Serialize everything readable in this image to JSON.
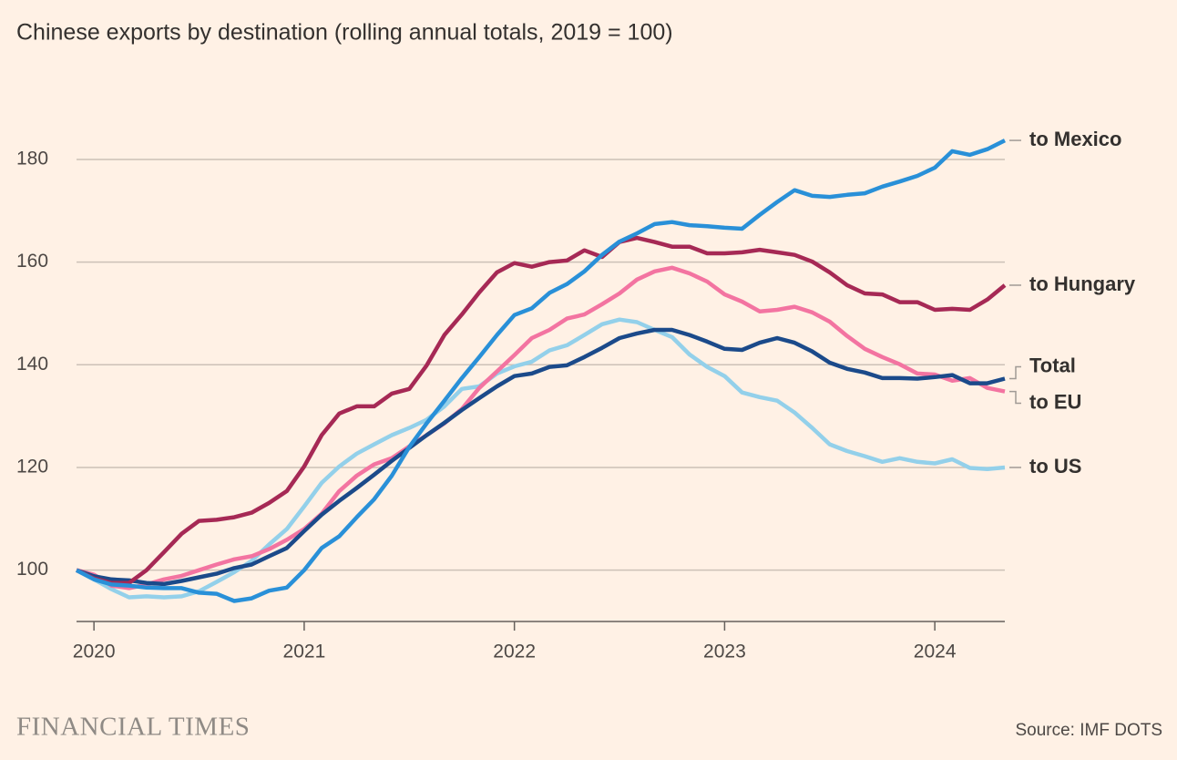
{
  "chart_data": {
    "type": "line",
    "title": "Chinese exports by destination (rolling annual totals, 2019 = 100)",
    "x": [
      2019.917,
      2020.0,
      2020.083,
      2020.167,
      2020.25,
      2020.333,
      2020.417,
      2020.5,
      2020.583,
      2020.667,
      2020.75,
      2020.833,
      2020.917,
      2021.0,
      2021.083,
      2021.167,
      2021.25,
      2021.333,
      2021.417,
      2021.5,
      2021.583,
      2021.667,
      2021.75,
      2021.833,
      2021.917,
      2022.0,
      2022.083,
      2022.167,
      2022.25,
      2022.333,
      2022.417,
      2022.5,
      2022.583,
      2022.667,
      2022.75,
      2022.833,
      2022.917,
      2023.0,
      2023.083,
      2023.167,
      2023.25,
      2023.333,
      2023.417,
      2023.5,
      2023.583,
      2023.667,
      2023.75,
      2023.833,
      2023.917,
      2024.0,
      2024.083,
      2024.167,
      2024.25,
      2024.333
    ],
    "series": [
      {
        "name": "to US",
        "color": "#93d0ea",
        "values": [
          100,
          98.2,
          96.3,
          94.7,
          94.9,
          94.7,
          94.9,
          95.9,
          97.7,
          99.6,
          101.8,
          105,
          108,
          112.4,
          117,
          120.2,
          122.7,
          124.5,
          126.3,
          127.7,
          129.3,
          131.9,
          135.3,
          135.8,
          138.3,
          139.7,
          140.6,
          142.8,
          143.8,
          145.8,
          147.9,
          148.8,
          148.3,
          146.8,
          145.4,
          142,
          139.6,
          137.8,
          134.6,
          133.7,
          133,
          130.7,
          127.7,
          124.5,
          123.2,
          122.2,
          121.1,
          121.8,
          121.1,
          120.8,
          121.6,
          119.9,
          119.7,
          120
        ]
      },
      {
        "name": "to EU",
        "color": "#f374a1",
        "values": [
          100,
          99.1,
          97,
          96.5,
          97.2,
          98.2,
          98.9,
          100,
          101.1,
          102.1,
          102.7,
          104.1,
          105.9,
          108,
          111,
          115.4,
          118.4,
          120.6,
          121.8,
          124.1,
          126.3,
          128.6,
          131.4,
          135.5,
          138.7,
          141.9,
          145.2,
          146.8,
          149,
          149.8,
          151.8,
          153.9,
          156.6,
          158.2,
          158.9,
          157.8,
          156.2,
          153.7,
          152.3,
          150.4,
          150.7,
          151.3,
          150.2,
          148.4,
          145.6,
          143.1,
          141.5,
          140.1,
          138.3,
          138.1,
          136.9,
          137.4,
          135.5,
          134.8
        ]
      },
      {
        "name": "Total",
        "color": "#1b4a8a",
        "values": [
          100,
          98.8,
          98.2,
          98,
          97.5,
          97.3,
          97.9,
          98.6,
          99.3,
          100.4,
          101.1,
          102.7,
          104.3,
          107.6,
          110.8,
          113.5,
          116,
          118.6,
          121.3,
          123.8,
          126.3,
          128.7,
          131.2,
          133.5,
          135.8,
          137.8,
          138.3,
          139.6,
          139.9,
          141.5,
          143.3,
          145.2,
          146.1,
          146.8,
          146.8,
          145.8,
          144.5,
          143.1,
          142.9,
          144.3,
          145.2,
          144.3,
          142.6,
          140.4,
          139.2,
          138.5,
          137.4,
          137.4,
          137.3,
          137.6,
          138,
          136.4,
          136.4,
          137.3
        ]
      },
      {
        "name": "to Hungary",
        "color": "#a62955",
        "values": [
          100,
          98.4,
          97.5,
          97.5,
          100,
          103.5,
          107.1,
          109.6,
          109.8,
          110.3,
          111.2,
          113.1,
          115.4,
          120.2,
          126.3,
          130.5,
          131.9,
          131.9,
          134.4,
          135.3,
          139.9,
          145.8,
          149.8,
          154.1,
          158,
          159.8,
          159.1,
          160,
          160.3,
          162.3,
          161,
          163.9,
          164.7,
          163.9,
          163,
          163,
          161.7,
          161.7,
          161.9,
          162.4,
          161.9,
          161.4,
          160.1,
          158,
          155.5,
          153.9,
          153.7,
          152.2,
          152.2,
          150.7,
          150.9,
          150.7,
          152.7,
          155.5
        ]
      },
      {
        "name": "to Mexico",
        "color": "#2990d8",
        "values": [
          100,
          98.2,
          97.2,
          97,
          96.6,
          96.5,
          96.5,
          95.6,
          95.4,
          94,
          94.5,
          96,
          96.6,
          100,
          104.3,
          106.6,
          110.3,
          113.8,
          118.4,
          124,
          128.6,
          133,
          137.4,
          141.5,
          145.8,
          149.7,
          151,
          154,
          155.7,
          158.2,
          161.4,
          164,
          165.6,
          167.4,
          167.8,
          167.2,
          167,
          166.7,
          166.5,
          169.2,
          171.7,
          174,
          172.9,
          172.7,
          173.1,
          173.4,
          174.7,
          175.7,
          176.8,
          178.4,
          181.6,
          180.9,
          182,
          183.7
        ]
      }
    ],
    "xlim": [
      2019.917,
      2024.333
    ],
    "xticks": [
      2020,
      2021,
      2022,
      2023,
      2024
    ],
    "ylim": [
      90,
      190
    ],
    "yticks": [
      100,
      120,
      140,
      160,
      180
    ],
    "grid": true,
    "brand": "FINANCIAL TIMES",
    "source": "Source: IMF DOTS"
  }
}
